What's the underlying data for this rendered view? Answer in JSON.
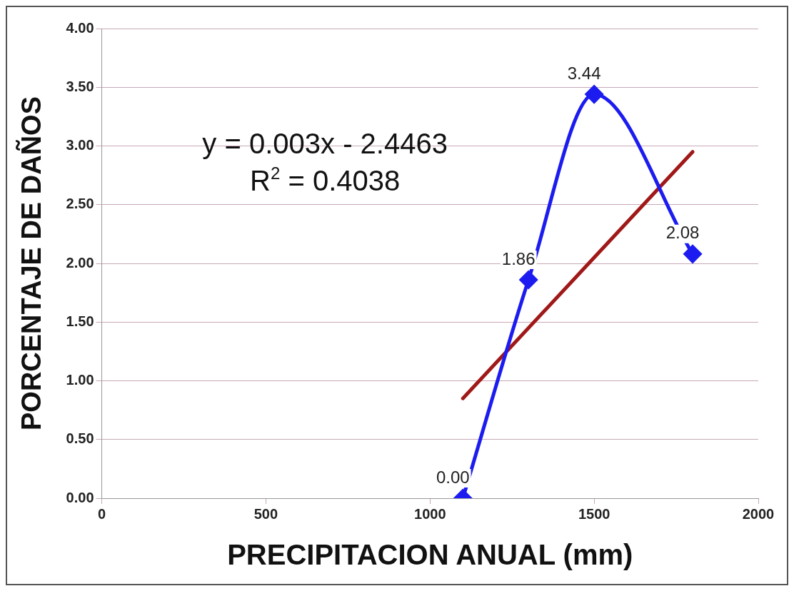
{
  "chart_data": {
    "type": "scatter",
    "xlabel": "PRECIPITACION ANUAL (mm)",
    "ylabel": "PORCENTAJE DE DAÑOS",
    "series": [
      {
        "type": "line",
        "color": "#1c1cf0",
        "x": [
          1100,
          1300,
          1500,
          1800
        ],
        "values": [
          0.0,
          1.86,
          3.44,
          2.08
        ],
        "value_labels": [
          "0.00",
          "1.86",
          "3.44",
          "2.08"
        ],
        "marker": "diamond"
      },
      {
        "type": "line",
        "color": "#a01818",
        "x": [
          1100,
          1800
        ],
        "values": [
          0.85,
          2.95
        ],
        "marker": "none"
      }
    ],
    "xlim": [
      0,
      2000
    ],
    "xticks": [
      0,
      500,
      1000,
      1500,
      2000
    ],
    "ylim": [
      0,
      4
    ],
    "yticks": [
      {
        "value": 0,
        "label": "0.00"
      },
      {
        "value": 0.5,
        "label": "0.50"
      },
      {
        "value": 1,
        "label": "1.00"
      },
      {
        "value": 1.5,
        "label": "1.50"
      },
      {
        "value": 2,
        "label": "2.00"
      },
      {
        "value": 2.5,
        "label": "2.50"
      },
      {
        "value": 3,
        "label": "3.00"
      },
      {
        "value": 3.5,
        "label": "3.50"
      },
      {
        "value": 4,
        "label": "4.00"
      }
    ],
    "grid": "y",
    "annotations": [
      "y = 0.003x - 2.4463",
      "R$^{2}$ = 0.4038"
    ]
  }
}
